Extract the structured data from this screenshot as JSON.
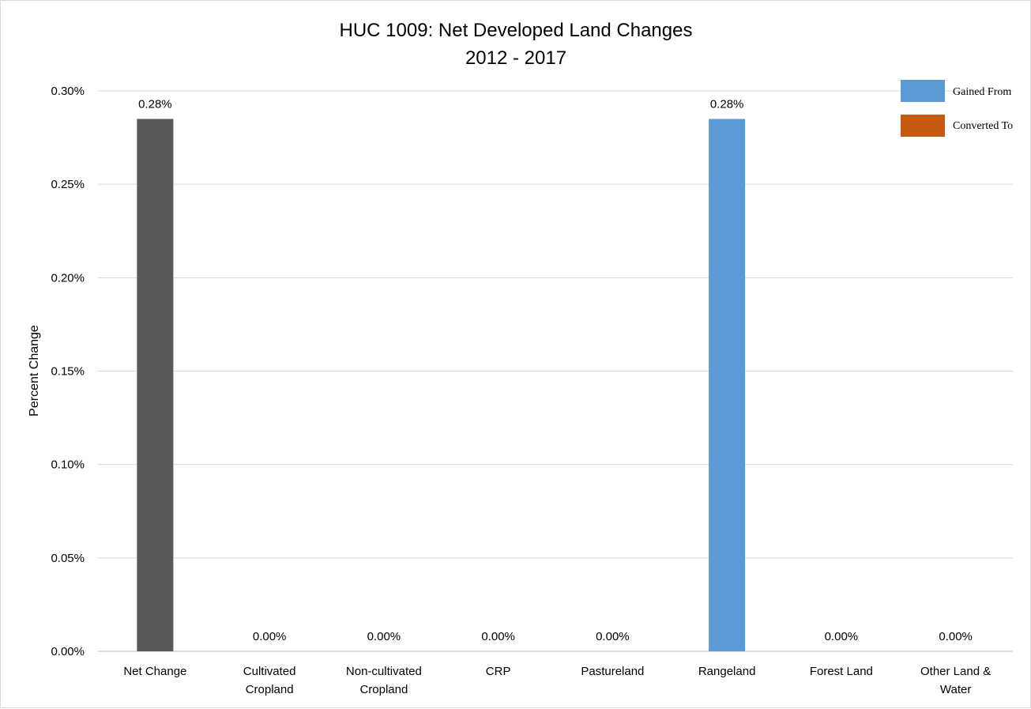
{
  "chart_data": {
    "type": "bar",
    "title": "HUC 1009: Net Developed Land Changes",
    "subtitle": "2012 - 2017",
    "ylabel": "Percent Change",
    "xlabel": "",
    "ylim": [
      0,
      0.3
    ],
    "yticks": [
      "0.00%",
      "0.05%",
      "0.10%",
      "0.15%",
      "0.20%",
      "0.25%",
      "0.30%"
    ],
    "grid": true,
    "legend_position": "top-right",
    "categories": [
      [
        "Net Change"
      ],
      [
        "Cultivated",
        "Cropland"
      ],
      [
        "Non-cultivated",
        "Cropland"
      ],
      [
        "CRP"
      ],
      [
        "Pastureland"
      ],
      [
        "Rangeland"
      ],
      [
        "Forest Land"
      ],
      [
        "Other Land &",
        "Water"
      ]
    ],
    "values": [
      0.285,
      0,
      0,
      0,
      0,
      0.285,
      0,
      0
    ],
    "data_labels": [
      "0.28%",
      "0.00%",
      "0.00%",
      "0.00%",
      "0.00%",
      "0.28%",
      "0.00%",
      "0.00%"
    ],
    "bar_colors": [
      "#595959",
      "#5b9bd5",
      "#5b9bd5",
      "#5b9bd5",
      "#5b9bd5",
      "#5b9bd5",
      "#5b9bd5",
      "#5b9bd5"
    ],
    "series": [
      {
        "name": "Gained From",
        "color": "#5b9bd5"
      },
      {
        "name": "Converted To",
        "color": "#c55a11"
      }
    ]
  }
}
